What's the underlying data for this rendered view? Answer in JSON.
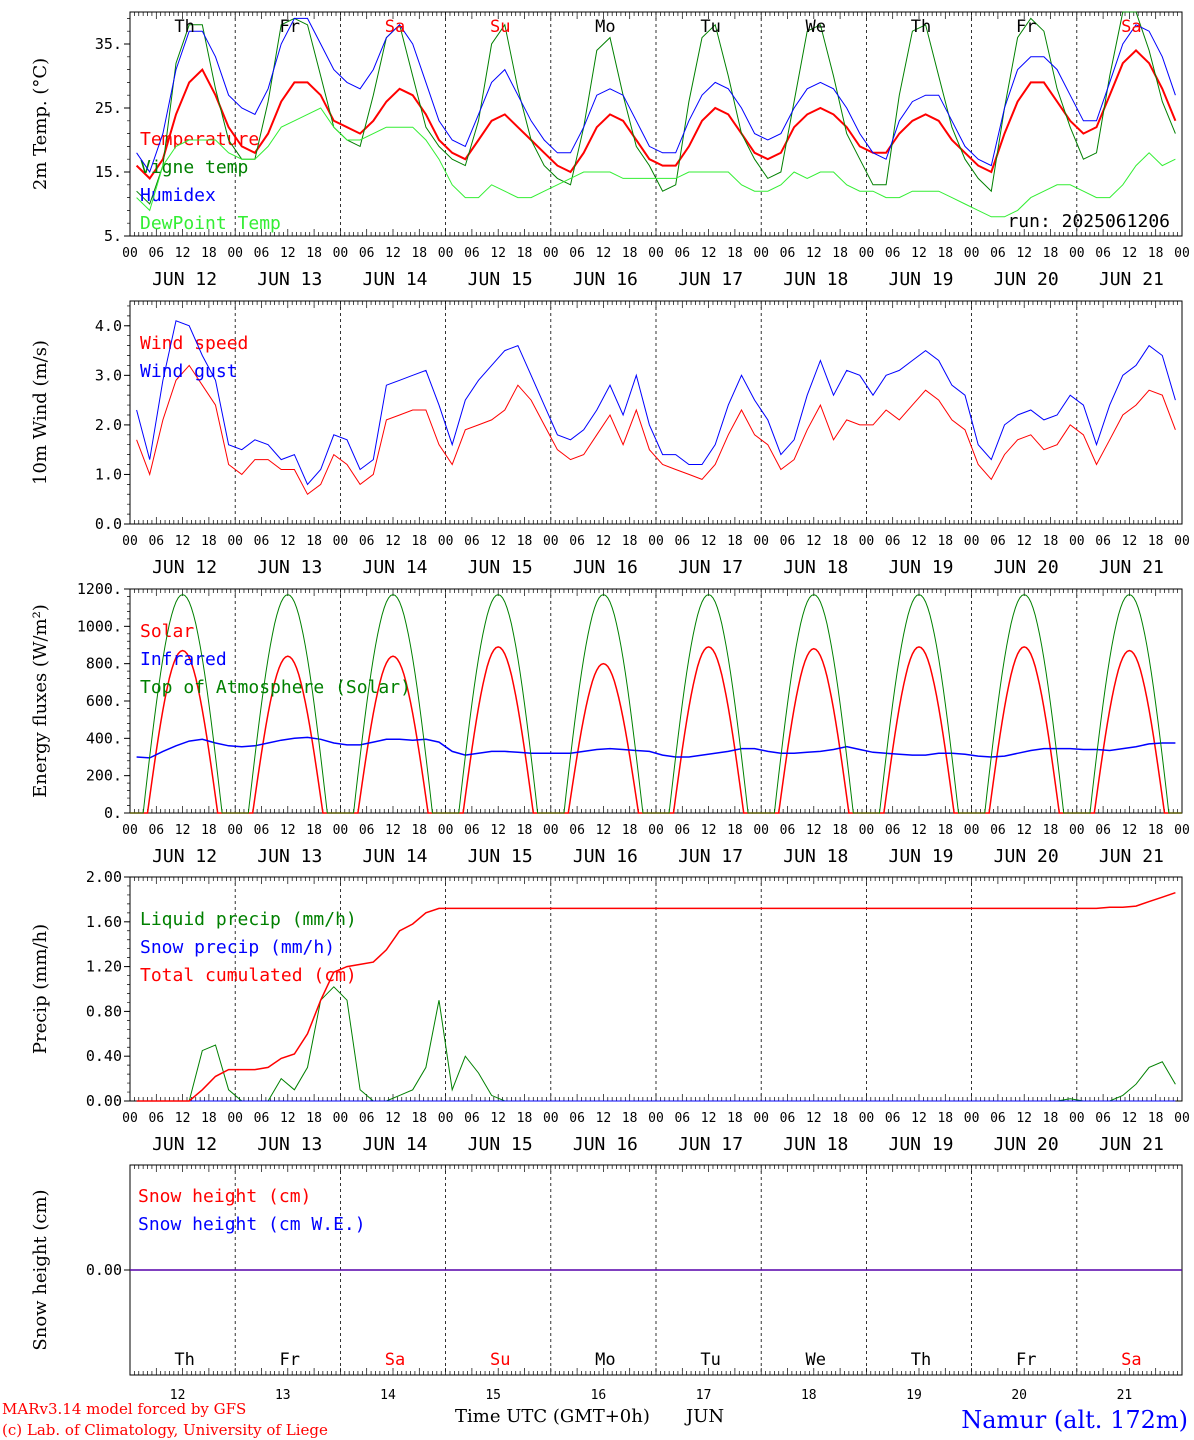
{
  "time_axis": {
    "hour_labels": [
      "00",
      "06",
      "12",
      "18"
    ],
    "dates": [
      "JUN 12",
      "JUN 13",
      "JUN 14",
      "JUN 15",
      "JUN 16",
      "JUN 17",
      "JUN 18",
      "JUN 19",
      "JUN 20",
      "JUN 21"
    ],
    "weekdays": [
      "Th",
      "Fr",
      "Sa",
      "Su",
      "Mo",
      "Tu",
      "We",
      "Th",
      "Fr",
      "Sa"
    ],
    "weekday_colors": [
      "#000000",
      "#000000",
      "#ff0000",
      "#ff0000",
      "#000000",
      "#000000",
      "#000000",
      "#000000",
      "#000000",
      "#ff0000"
    ],
    "day_numbers": [
      "12",
      "13",
      "14",
      "15",
      "16",
      "17",
      "18",
      "19",
      "20",
      "21"
    ],
    "xlabel": "Time UTC (GMT+0h)",
    "month": "JUN"
  },
  "run_label": "run: 2025061206",
  "footer": {
    "model": "MARv3.14 model forced by GFS",
    "credit": "(c) Lab. of Climatology, University of Liege",
    "site": "Namur (alt. 172m)"
  },
  "colors": {
    "red": "#ff0000",
    "green": "#008000",
    "blue": "#0000ff",
    "lightgreen": "#33ee33"
  },
  "chart_data": [
    {
      "type": "line",
      "ylabel": "2m Temp. (°C)",
      "ylim": [
        5,
        40
      ],
      "yticks": [
        5,
        15,
        25,
        35
      ],
      "ytick_labels": [
        "5.",
        "15.",
        "25.",
        "35."
      ],
      "x": "hours since JUN 12 00 UTC, every 3 h",
      "series": [
        {
          "name": "Temperature",
          "color": "#ff0000",
          "width": 2,
          "values": [
            16,
            14,
            17,
            24,
            29,
            31,
            27,
            22,
            19,
            18,
            21,
            26,
            29,
            29,
            27,
            23,
            22,
            21,
            23,
            26,
            28,
            27,
            24,
            20,
            18,
            17,
            20,
            23,
            24,
            22,
            20,
            18,
            16,
            15,
            18,
            22,
            24,
            23,
            20,
            17,
            16,
            16,
            19,
            23,
            25,
            24,
            21,
            18,
            17,
            18,
            22,
            24,
            25,
            24,
            22,
            19,
            18,
            18,
            21,
            23,
            24,
            23,
            20,
            18,
            16,
            15,
            21,
            26,
            29,
            29,
            26,
            23,
            21,
            22,
            27,
            32,
            34,
            32,
            28,
            23
          ]
        },
        {
          "name": "Vigne temp",
          "color": "#008000",
          "width": 1,
          "values": [
            12,
            10,
            16,
            32,
            38,
            38,
            28,
            20,
            17,
            17,
            26,
            38,
            39,
            38,
            30,
            22,
            20,
            19,
            27,
            36,
            38,
            30,
            22,
            19,
            17,
            16,
            23,
            35,
            38,
            28,
            20,
            16,
            14,
            13,
            22,
            34,
            36,
            27,
            19,
            16,
            12,
            13,
            26,
            36,
            38,
            30,
            21,
            17,
            14,
            15,
            26,
            37,
            38,
            30,
            21,
            17,
            13,
            13,
            27,
            37,
            38,
            30,
            22,
            17,
            14,
            12,
            25,
            36,
            39,
            37,
            28,
            22,
            17,
            18,
            30,
            40,
            40,
            34,
            26,
            21
          ]
        },
        {
          "name": "Humidex",
          "color": "#0000ff",
          "width": 1,
          "values": [
            18,
            15,
            21,
            31,
            37,
            37,
            33,
            27,
            25,
            24,
            28,
            35,
            39,
            39,
            35,
            31,
            29,
            28,
            31,
            36,
            38,
            35,
            29,
            23,
            20,
            19,
            24,
            29,
            31,
            27,
            23,
            20,
            18,
            18,
            22,
            27,
            28,
            27,
            23,
            19,
            18,
            18,
            23,
            27,
            29,
            28,
            25,
            21,
            20,
            21,
            25,
            28,
            29,
            28,
            25,
            21,
            18,
            17,
            23,
            26,
            27,
            27,
            23,
            19,
            17,
            16,
            25,
            31,
            33,
            33,
            31,
            27,
            23,
            23,
            29,
            35,
            38,
            37,
            33,
            27
          ]
        },
        {
          "name": "DewPoint Temp",
          "color": "#33ee33",
          "width": 1,
          "values": [
            11,
            9,
            16,
            19,
            20,
            20,
            20,
            18,
            17,
            17,
            19,
            22,
            23,
            24,
            25,
            22,
            20,
            20,
            21,
            22,
            22,
            22,
            20,
            17,
            13,
            11,
            11,
            13,
            12,
            11,
            11,
            12,
            13,
            14,
            15,
            15,
            15,
            14,
            14,
            14,
            14,
            14,
            15,
            15,
            15,
            15,
            13,
            12,
            12,
            13,
            15,
            14,
            15,
            15,
            13,
            12,
            12,
            11,
            11,
            12,
            12,
            12,
            11,
            10,
            9,
            8,
            8,
            9,
            11,
            12,
            13,
            13,
            12,
            11,
            11,
            13,
            16,
            18,
            16,
            17
          ]
        }
      ]
    },
    {
      "type": "line",
      "ylabel": "10m Wind (m/s)",
      "ylim": [
        0,
        4.5
      ],
      "yticks": [
        0,
        1,
        2,
        3,
        4
      ],
      "ytick_labels": [
        "0.0",
        "1.0",
        "2.0",
        "3.0",
        "4.0"
      ],
      "series": [
        {
          "name": "Wind speed",
          "color": "#ff0000",
          "width": 1,
          "values": [
            1.7,
            1.0,
            2.1,
            2.9,
            3.2,
            2.8,
            2.4,
            1.2,
            1.0,
            1.3,
            1.3,
            1.1,
            1.1,
            0.6,
            0.8,
            1.4,
            1.2,
            0.8,
            1.0,
            2.1,
            2.2,
            2.3,
            2.3,
            1.6,
            1.2,
            1.9,
            2.0,
            2.1,
            2.3,
            2.8,
            2.5,
            2.0,
            1.5,
            1.3,
            1.4,
            1.8,
            2.2,
            1.6,
            2.3,
            1.5,
            1.2,
            1.1,
            1.0,
            0.9,
            1.2,
            1.8,
            2.3,
            1.8,
            1.6,
            1.1,
            1.3,
            1.9,
            2.4,
            1.7,
            2.1,
            2.0,
            2.0,
            2.3,
            2.1,
            2.4,
            2.7,
            2.5,
            2.1,
            1.9,
            1.2,
            0.9,
            1.4,
            1.7,
            1.8,
            1.5,
            1.6,
            2.0,
            1.8,
            1.2,
            1.7,
            2.2,
            2.4,
            2.7,
            2.6,
            1.9
          ]
        },
        {
          "name": "Wind gust",
          "color": "#0000ff",
          "width": 1,
          "values": [
            2.3,
            1.3,
            2.9,
            4.1,
            4.0,
            3.4,
            2.9,
            1.6,
            1.5,
            1.7,
            1.6,
            1.3,
            1.4,
            0.8,
            1.1,
            1.8,
            1.7,
            1.1,
            1.3,
            2.8,
            2.9,
            3.0,
            3.1,
            2.4,
            1.6,
            2.5,
            2.9,
            3.2,
            3.5,
            3.6,
            3.0,
            2.4,
            1.8,
            1.7,
            1.9,
            2.3,
            2.8,
            2.2,
            3.0,
            2.0,
            1.4,
            1.4,
            1.2,
            1.2,
            1.6,
            2.4,
            3.0,
            2.5,
            2.1,
            1.4,
            1.7,
            2.6,
            3.3,
            2.6,
            3.1,
            3.0,
            2.6,
            3.0,
            3.1,
            3.3,
            3.5,
            3.3,
            2.8,
            2.6,
            1.6,
            1.3,
            2.0,
            2.2,
            2.3,
            2.1,
            2.2,
            2.6,
            2.4,
            1.6,
            2.4,
            3.0,
            3.2,
            3.6,
            3.4,
            2.5
          ]
        }
      ]
    },
    {
      "type": "line",
      "ylabel": "Energy fluxes (W/m²)",
      "ylim": [
        0,
        1200
      ],
      "yticks": [
        0,
        200,
        400,
        600,
        800,
        1000,
        1200
      ],
      "ytick_labels": [
        "0.",
        "200.",
        "400.",
        "600.",
        "800.",
        "1000.",
        "1200."
      ],
      "series": [
        {
          "name": "Solar",
          "color": "#ff0000",
          "width": 1.5,
          "peaks": [
            870,
            840,
            840,
            890,
            800,
            890,
            880,
            890,
            890,
            870
          ]
        },
        {
          "name": "Infrared",
          "color": "#0000ff",
          "width": 1.5,
          "values": [
            300,
            295,
            330,
            360,
            385,
            395,
            375,
            360,
            355,
            360,
            375,
            390,
            400,
            405,
            395,
            375,
            365,
            365,
            380,
            395,
            395,
            390,
            395,
            380,
            330,
            310,
            320,
            330,
            330,
            325,
            320,
            320,
            320,
            320,
            330,
            340,
            345,
            340,
            335,
            330,
            310,
            300,
            300,
            310,
            320,
            330,
            345,
            345,
            330,
            320,
            320,
            325,
            330,
            340,
            355,
            340,
            325,
            320,
            315,
            310,
            310,
            320,
            320,
            315,
            305,
            300,
            305,
            320,
            335,
            345,
            345,
            345,
            340,
            340,
            335,
            345,
            355,
            370,
            375,
            375
          ]
        },
        {
          "name": "Top of Atmosphere (Solar)",
          "color": "#008000",
          "width": 1,
          "peaks": [
            1170,
            1170,
            1170,
            1170,
            1170,
            1170,
            1170,
            1170,
            1170,
            1170
          ]
        }
      ]
    },
    {
      "type": "line",
      "ylabel": "Precip (mm/h)",
      "ylim": [
        0,
        2
      ],
      "yticks": [
        0,
        0.4,
        0.8,
        1.2,
        1.6,
        2.0
      ],
      "ytick_labels": [
        "0.00",
        "0.40",
        "0.80",
        "1.20",
        "1.60",
        "2.00"
      ],
      "series": [
        {
          "name": "Liquid precip (mm/h)",
          "color": "#008000",
          "width": 1,
          "values": [
            0,
            0,
            0,
            0,
            0,
            0.45,
            0.5,
            0.1,
            0,
            0,
            0,
            0.2,
            0.1,
            0.3,
            0.9,
            1.02,
            0.9,
            0.1,
            0,
            0,
            0.05,
            0.1,
            0.3,
            0.9,
            0.1,
            0.4,
            0.25,
            0.05,
            0,
            0,
            0,
            0,
            0,
            0,
            0,
            0,
            0,
            0,
            0,
            0,
            0,
            0,
            0,
            0,
            0,
            0,
            0,
            0,
            0,
            0,
            0,
            0,
            0,
            0,
            0,
            0,
            0,
            0,
            0,
            0,
            0,
            0,
            0,
            0,
            0,
            0,
            0,
            0,
            0,
            0,
            0,
            0.02,
            0,
            0,
            0,
            0.05,
            0.15,
            0.3,
            0.35,
            0.15
          ]
        },
        {
          "name": "Snow precip (mm/h)",
          "color": "#0000ff",
          "width": 1,
          "values": [
            0,
            0,
            0,
            0,
            0,
            0,
            0,
            0,
            0,
            0,
            0,
            0,
            0,
            0,
            0,
            0,
            0,
            0,
            0,
            0,
            0,
            0,
            0,
            0,
            0,
            0,
            0,
            0,
            0,
            0,
            0,
            0,
            0,
            0,
            0,
            0,
            0,
            0,
            0,
            0,
            0,
            0,
            0,
            0,
            0,
            0,
            0,
            0,
            0,
            0,
            0,
            0,
            0,
            0,
            0,
            0,
            0,
            0,
            0,
            0,
            0,
            0,
            0,
            0,
            0,
            0,
            0,
            0,
            0,
            0,
            0,
            0,
            0,
            0,
            0,
            0,
            0,
            0,
            0,
            0
          ]
        },
        {
          "name": "Total cumulated (cm)",
          "color": "#ff0000",
          "width": 1.5,
          "values": [
            0,
            0,
            0,
            0,
            0,
            0.1,
            0.22,
            0.28,
            0.28,
            0.28,
            0.3,
            0.38,
            0.42,
            0.6,
            0.9,
            1.15,
            1.2,
            1.22,
            1.24,
            1.35,
            1.52,
            1.58,
            1.68,
            1.72,
            1.72,
            1.72,
            1.72,
            1.72,
            1.72,
            1.72,
            1.72,
            1.72,
            1.72,
            1.72,
            1.72,
            1.72,
            1.72,
            1.72,
            1.72,
            1.72,
            1.72,
            1.72,
            1.72,
            1.72,
            1.72,
            1.72,
            1.72,
            1.72,
            1.72,
            1.72,
            1.72,
            1.72,
            1.72,
            1.72,
            1.72,
            1.72,
            1.72,
            1.72,
            1.72,
            1.72,
            1.72,
            1.72,
            1.72,
            1.72,
            1.72,
            1.72,
            1.72,
            1.72,
            1.72,
            1.72,
            1.72,
            1.72,
            1.72,
            1.72,
            1.73,
            1.73,
            1.74,
            1.78,
            1.82,
            1.86
          ]
        }
      ]
    },
    {
      "type": "line",
      "ylabel": "Snow height (cm)",
      "ylim": [
        -1,
        1
      ],
      "yticks": [
        0
      ],
      "ytick_labels": [
        "0.00"
      ],
      "series": [
        {
          "name": "Snow height (cm)",
          "color": "#ff0000",
          "width": 1.5,
          "value": 0
        },
        {
          "name": "Snow height (cm W.E.)",
          "color": "#0000ff",
          "width": 1,
          "value": 0
        }
      ]
    }
  ]
}
